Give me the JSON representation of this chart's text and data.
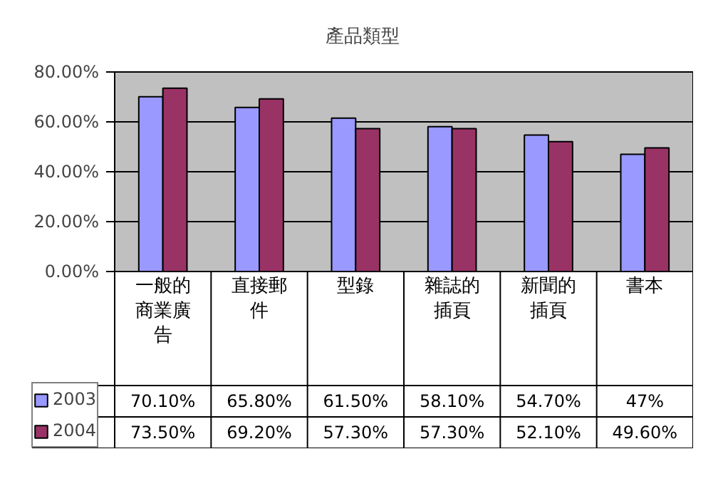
{
  "chart_data": {
    "type": "bar",
    "title": "產品類型",
    "categories": [
      "一般的商業廣告",
      "直接郵件",
      "型錄",
      "雜誌的插頁",
      "新聞的插頁",
      "書本"
    ],
    "series": [
      {
        "name": "2003",
        "color": "#9999ff",
        "values": [
          70.1,
          65.8,
          61.5,
          58.1,
          54.7,
          47
        ],
        "value_labels": [
          "70.10%",
          "65.80%",
          "61.50%",
          "58.10%",
          "54.70%",
          "47%"
        ]
      },
      {
        "name": "2004",
        "color": "#993366",
        "values": [
          73.5,
          69.2,
          57.3,
          57.3,
          52.1,
          49.6
        ],
        "value_labels": [
          "73.50%",
          "69.20%",
          "57.30%",
          "57.30%",
          "52.10%",
          "49.60%"
        ]
      }
    ],
    "ylim": [
      0,
      80
    ],
    "yticks": [
      {
        "value": 0,
        "label": "0.00%"
      },
      {
        "value": 20,
        "label": "20.00%"
      },
      {
        "value": 40,
        "label": "40.00%"
      },
      {
        "value": 60,
        "label": "60.00%"
      },
      {
        "value": 80,
        "label": "80.00%"
      }
    ],
    "grid": "y",
    "legend": "bottom left"
  }
}
